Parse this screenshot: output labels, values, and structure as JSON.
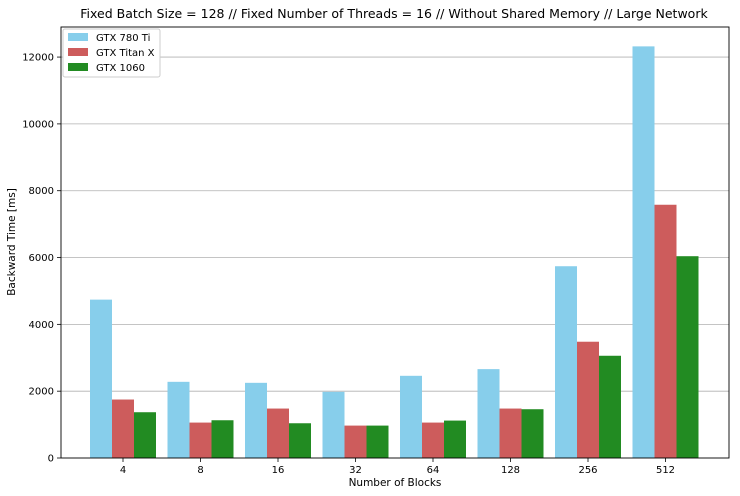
{
  "chart_data": {
    "type": "bar",
    "title": "Fixed Batch Size = 128 // Fixed Number of Threads = 16 // Without Shared Memory // Large Network",
    "xlabel": "Number of Blocks",
    "ylabel": "Backward Time [ms]",
    "categories": [
      "4",
      "8",
      "16",
      "32",
      "64",
      "128",
      "256",
      "512"
    ],
    "ylim": [
      0,
      12900
    ],
    "yticks": [
      0,
      2000,
      4000,
      6000,
      8000,
      10000,
      12000
    ],
    "grid": "horizontal",
    "legend_position": "top-left",
    "series": [
      {
        "name": "GTX 780 Ti",
        "color": "#87ceeb",
        "values": [
          4740,
          2280,
          2250,
          1980,
          2460,
          2660,
          5740,
          12320
        ]
      },
      {
        "name": "GTX Titan X",
        "color": "#cd5c5c",
        "values": [
          1750,
          1060,
          1480,
          970,
          1060,
          1480,
          3480,
          7580
        ]
      },
      {
        "name": "GTX 1060",
        "color": "#228b22",
        "values": [
          1370,
          1130,
          1040,
          970,
          1120,
          1460,
          3060,
          6040
        ]
      }
    ]
  }
}
